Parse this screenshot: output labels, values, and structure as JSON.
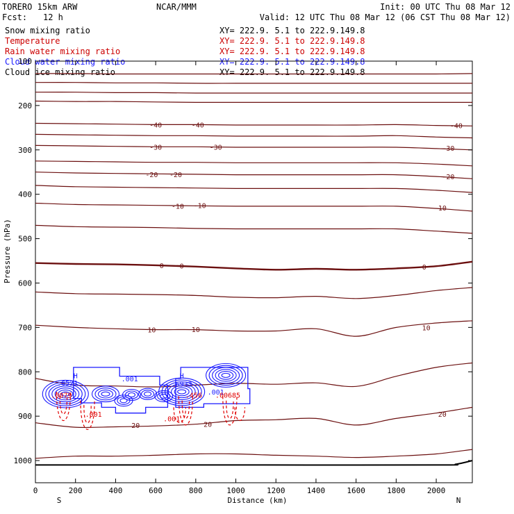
{
  "header": {
    "model": "TORERO  15km ARW",
    "center": "NCAR/MMM",
    "init": "Init: 00 UTC Thu 08 Mar 12",
    "fcst_label": "Fcst:",
    "fcst_value": "12 h",
    "valid": "Valid: 12 UTC Thu 08 Mar 12 (06 CST Thu 08 Mar 12)"
  },
  "legend": [
    {
      "field": "Snow mixing ratio",
      "xy": "XY= 222.9.  5.1 to 222.9.149.8",
      "color": "#000000"
    },
    {
      "field": "Temperature",
      "xy": "XY= 222.9.  5.1 to 222.9.149.8",
      "color": "#cc0000"
    },
    {
      "field": "Rain water mixing ratio",
      "xy": "XY= 222.9.  5.1 to 222.9.149.8",
      "color": "#cc0000"
    },
    {
      "field": "Cloud water mixing ratio",
      "xy": "XY= 222.9.  5.1 to 222.9.149.8",
      "color": "#1a1aff"
    },
    {
      "field": "Cloud ice mixing ratio",
      "xy": "XY= 222.9.  5.1 to 222.9.149.8",
      "color": "#000000"
    }
  ],
  "chart_data": {
    "type": "line",
    "title": "Vertical cross-section",
    "xlabel": "Distance (km)",
    "ylabel": "Pressure (hPa)",
    "xlim": [
      0,
      2180
    ],
    "ylim": [
      1050,
      100
    ],
    "xticks": [
      0,
      200,
      400,
      600,
      800,
      1000,
      1200,
      1400,
      1600,
      1800,
      2000
    ],
    "yticks": [
      100,
      200,
      300,
      400,
      500,
      600,
      700,
      800,
      900,
      1000
    ],
    "x_end_labels": {
      "left": "S",
      "right": "N"
    },
    "temperature_isotherms_pressure_at_x": {
      "x": [
        0,
        200,
        400,
        600,
        800,
        1000,
        1200,
        1400,
        1600,
        1800,
        2000,
        2180
      ],
      "series": [
        {
          "name": "-60",
          "values": [
            128,
            128,
            129,
            129,
            129,
            129,
            129,
            129,
            129,
            129,
            129,
            128
          ]
        },
        {
          "name": "-55",
          "values": [
            148,
            148,
            149,
            149,
            150,
            150,
            150,
            150,
            150,
            150,
            150,
            150
          ]
        },
        {
          "name": "-50",
          "values": [
            170,
            170,
            171,
            171,
            172,
            172,
            172,
            172,
            172,
            172,
            172,
            172
          ]
        },
        {
          "name": "-45",
          "values": [
            190,
            191,
            191,
            192,
            193,
            193,
            193,
            193,
            193,
            193,
            193,
            193
          ]
        },
        {
          "name": "-40",
          "values": [
            240,
            241,
            242,
            243,
            243,
            244,
            244,
            244,
            244,
            243,
            245,
            246
          ]
        },
        {
          "name": "-35",
          "values": [
            265,
            266,
            267,
            268,
            268,
            269,
            269,
            269,
            269,
            268,
            271,
            273
          ]
        },
        {
          "name": "-30",
          "values": [
            290,
            291,
            292,
            293,
            293,
            294,
            294,
            294,
            294,
            294,
            297,
            300
          ]
        },
        {
          "name": "-25",
          "values": [
            325,
            326,
            327,
            328,
            328,
            329,
            329,
            329,
            329,
            329,
            332,
            336
          ]
        },
        {
          "name": "-20",
          "values": [
            350,
            352,
            353,
            354,
            355,
            356,
            356,
            356,
            356,
            356,
            360,
            365
          ]
        },
        {
          "name": "-15",
          "values": [
            380,
            383,
            384,
            385,
            386,
            387,
            387,
            387,
            387,
            387,
            391,
            396
          ]
        },
        {
          "name": "-10",
          "values": [
            420,
            423,
            424,
            425,
            426,
            427,
            427,
            427,
            427,
            427,
            432,
            438
          ]
        },
        {
          "name": "-5",
          "values": [
            470,
            473,
            474,
            475,
            477,
            478,
            478,
            478,
            478,
            478,
            483,
            488
          ]
        },
        {
          "name": "0",
          "values": [
            555,
            557,
            558,
            560,
            563,
            567,
            570,
            568,
            570,
            567,
            562,
            552
          ]
        },
        {
          "name": "5",
          "values": [
            620,
            624,
            625,
            626,
            628,
            632,
            633,
            630,
            635,
            628,
            617,
            610
          ]
        },
        {
          "name": "10",
          "values": [
            695,
            700,
            703,
            705,
            705,
            708,
            708,
            703,
            720,
            700,
            690,
            685
          ]
        },
        {
          "name": "15",
          "values": [
            815,
            830,
            832,
            834,
            830,
            826,
            828,
            825,
            833,
            810,
            790,
            780
          ]
        },
        {
          "name": "20",
          "values": [
            915,
            925,
            924,
            922,
            918,
            910,
            908,
            905,
            920,
            905,
            893,
            880
          ]
        },
        {
          "name": "25",
          "values": [
            995,
            990,
            990,
            988,
            985,
            985,
            988,
            990,
            993,
            990,
            985,
            975
          ]
        }
      ]
    },
    "surface_pressure": {
      "x": [
        0,
        1000,
        2000,
        2100,
        2180
      ],
      "values": [
        1010,
        1010,
        1010,
        1008,
        1000
      ]
    },
    "labels": [
      {
        "text": "-40",
        "x": 600,
        "p": 243,
        "series": "temperature"
      },
      {
        "text": "-40",
        "x": 810,
        "p": 243,
        "series": "temperature"
      },
      {
        "text": "-40",
        "x": 2100,
        "p": 245,
        "series": "temperature"
      },
      {
        "text": "-30",
        "x": 600,
        "p": 293,
        "series": "temperature"
      },
      {
        "text": "-30",
        "x": 900,
        "p": 293,
        "series": "temperature"
      },
      {
        "text": "-30",
        "x": 2060,
        "p": 296,
        "series": "temperature"
      },
      {
        "text": "-20",
        "x": 580,
        "p": 355,
        "series": "temperature"
      },
      {
        "text": "-20",
        "x": 700,
        "p": 355,
        "series": "temperature"
      },
      {
        "text": "-20",
        "x": 2060,
        "p": 360,
        "series": "temperature"
      },
      {
        "text": "-10",
        "x": 710,
        "p": 426,
        "series": "temperature"
      },
      {
        "text": "-10",
        "x": 820,
        "p": 425,
        "series": "temperature"
      },
      {
        "text": "-10",
        "x": 2020,
        "p": 430,
        "series": "temperature"
      },
      {
        "text": "0",
        "x": 630,
        "p": 560,
        "series": "temperature"
      },
      {
        "text": "0",
        "x": 730,
        "p": 561,
        "series": "temperature"
      },
      {
        "text": "0",
        "x": 1940,
        "p": 563,
        "series": "temperature"
      },
      {
        "text": "10",
        "x": 580,
        "p": 705,
        "series": "temperature"
      },
      {
        "text": "10",
        "x": 800,
        "p": 704,
        "series": "temperature"
      },
      {
        "text": "10",
        "x": 1950,
        "p": 700,
        "series": "temperature"
      },
      {
        "text": "20",
        "x": 500,
        "p": 920,
        "series": "temperature"
      },
      {
        "text": "20",
        "x": 860,
        "p": 918,
        "series": "temperature"
      },
      {
        "text": "20",
        "x": 2030,
        "p": 895,
        "series": "temperature"
      },
      {
        "text": "H",
        "x": 200,
        "p": 808,
        "series": "cloud_water"
      },
      {
        "text": ".6521",
        "x": 160,
        "p": 825,
        "series": "cloud_water"
      },
      {
        "text": ".001",
        "x": 470,
        "p": 815,
        "series": "cloud_water"
      },
      {
        "text": "H",
        "x": 730,
        "p": 808,
        "series": "cloud_water"
      },
      {
        "text": ".6933",
        "x": 730,
        "p": 827,
        "series": "cloud_water"
      },
      {
        "text": ".001",
        "x": 900,
        "p": 845,
        "series": "cloud_water"
      },
      {
        "text": ".0079",
        "x": 130,
        "p": 852,
        "series": "rain_water"
      },
      {
        "text": ".001",
        "x": 290,
        "p": 895,
        "series": "rain_water"
      },
      {
        "text": ".456",
        "x": 790,
        "p": 852,
        "series": "rain_water"
      },
      {
        "text": ".00685",
        "x": 960,
        "p": 852,
        "series": "rain_water"
      },
      {
        "text": ".001",
        "x": 680,
        "p": 905,
        "series": "rain_water"
      }
    ],
    "cloud_water_mixing_ratio": {
      "levels": [
        0.001,
        0.1,
        0.2,
        0.3,
        0.4,
        0.5,
        0.6
      ],
      "centers": [
        {
          "x": 150,
          "p": 850,
          "max": 0.6521
        },
        {
          "x": 350,
          "p": 850,
          "max": 0.4
        },
        {
          "x": 730,
          "p": 845,
          "max": 0.6933
        },
        {
          "x": 950,
          "p": 808,
          "max": 0.6
        }
      ]
    },
    "rain_water_mixing_ratio": {
      "levels": [
        0.001,
        0.01
      ],
      "centers": [
        {
          "x": 140,
          "p": 870,
          "max": 0.0079
        },
        {
          "x": 260,
          "p": 890,
          "max": 0.001
        },
        {
          "x": 750,
          "p": 880,
          "max": 0.456
        },
        {
          "x": 970,
          "p": 880,
          "max": 0.00685
        }
      ]
    }
  },
  "colors": {
    "temperature": "#6b0f0f",
    "freezing": "#6b0f0f",
    "cloud_water": "#1a1aff",
    "rain_water": "#e00000",
    "surface": "#000000"
  }
}
